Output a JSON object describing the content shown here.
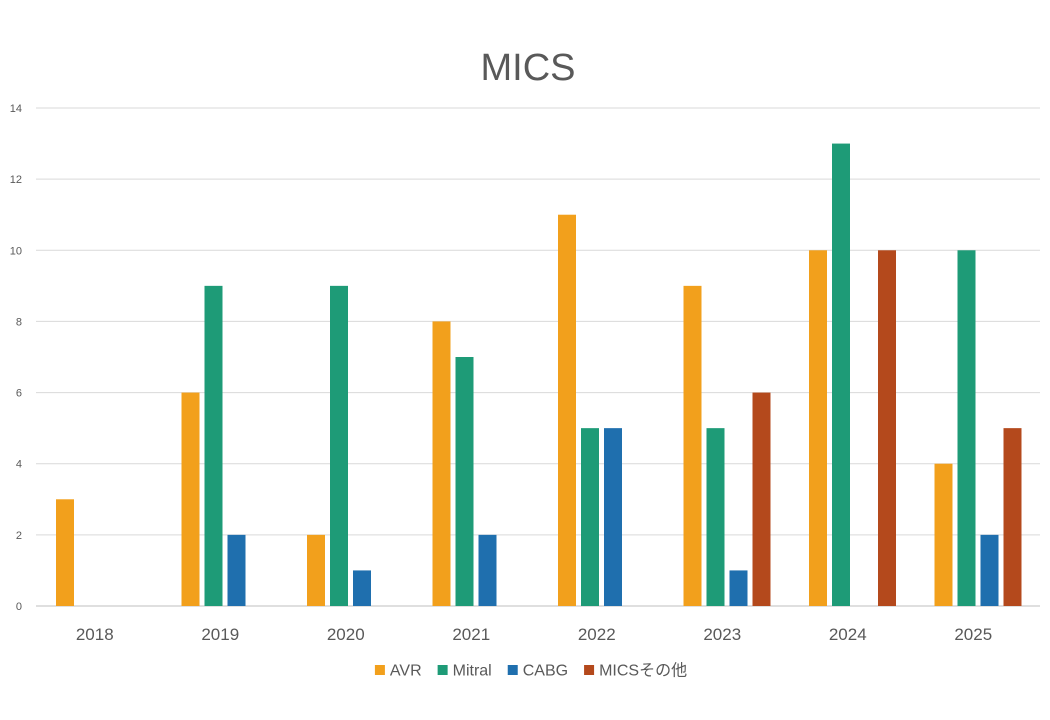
{
  "chart_data": {
    "type": "bar",
    "title": "MICS",
    "xlabel": "",
    "ylabel": "",
    "categories": [
      "2018",
      "2019",
      "2020",
      "2021",
      "2022",
      "2023",
      "2024",
      "2025"
    ],
    "ylim": [
      0,
      14
    ],
    "yticks": [
      0,
      2,
      4,
      6,
      8,
      10,
      12,
      14
    ],
    "grid": true,
    "legend_position": "bottom",
    "series": [
      {
        "name": "AVR",
        "color": "#F2A01C",
        "values": [
          3,
          6,
          2,
          8,
          11,
          9,
          10,
          4
        ]
      },
      {
        "name": "Mitral",
        "color": "#1E9B77",
        "values": [
          0,
          9,
          9,
          7,
          5,
          5,
          13,
          10
        ]
      },
      {
        "name": "CABG",
        "color": "#1F6FAE",
        "values": [
          0,
          2,
          1,
          2,
          5,
          1,
          0,
          2
        ]
      },
      {
        "name": "MICSその他",
        "color": "#B4491C",
        "values": [
          0,
          0,
          0,
          0,
          0,
          6,
          10,
          5
        ]
      }
    ]
  }
}
